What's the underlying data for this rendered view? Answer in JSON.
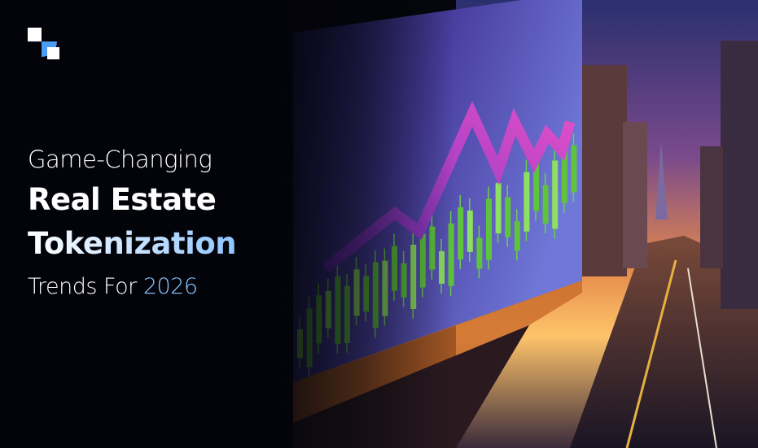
{
  "headline": {
    "line1": "Game-Changing",
    "line2": "Real Estate",
    "line3": "Tokenization",
    "line4_start": "Trends For",
    "line4_end": "2026"
  }
}
